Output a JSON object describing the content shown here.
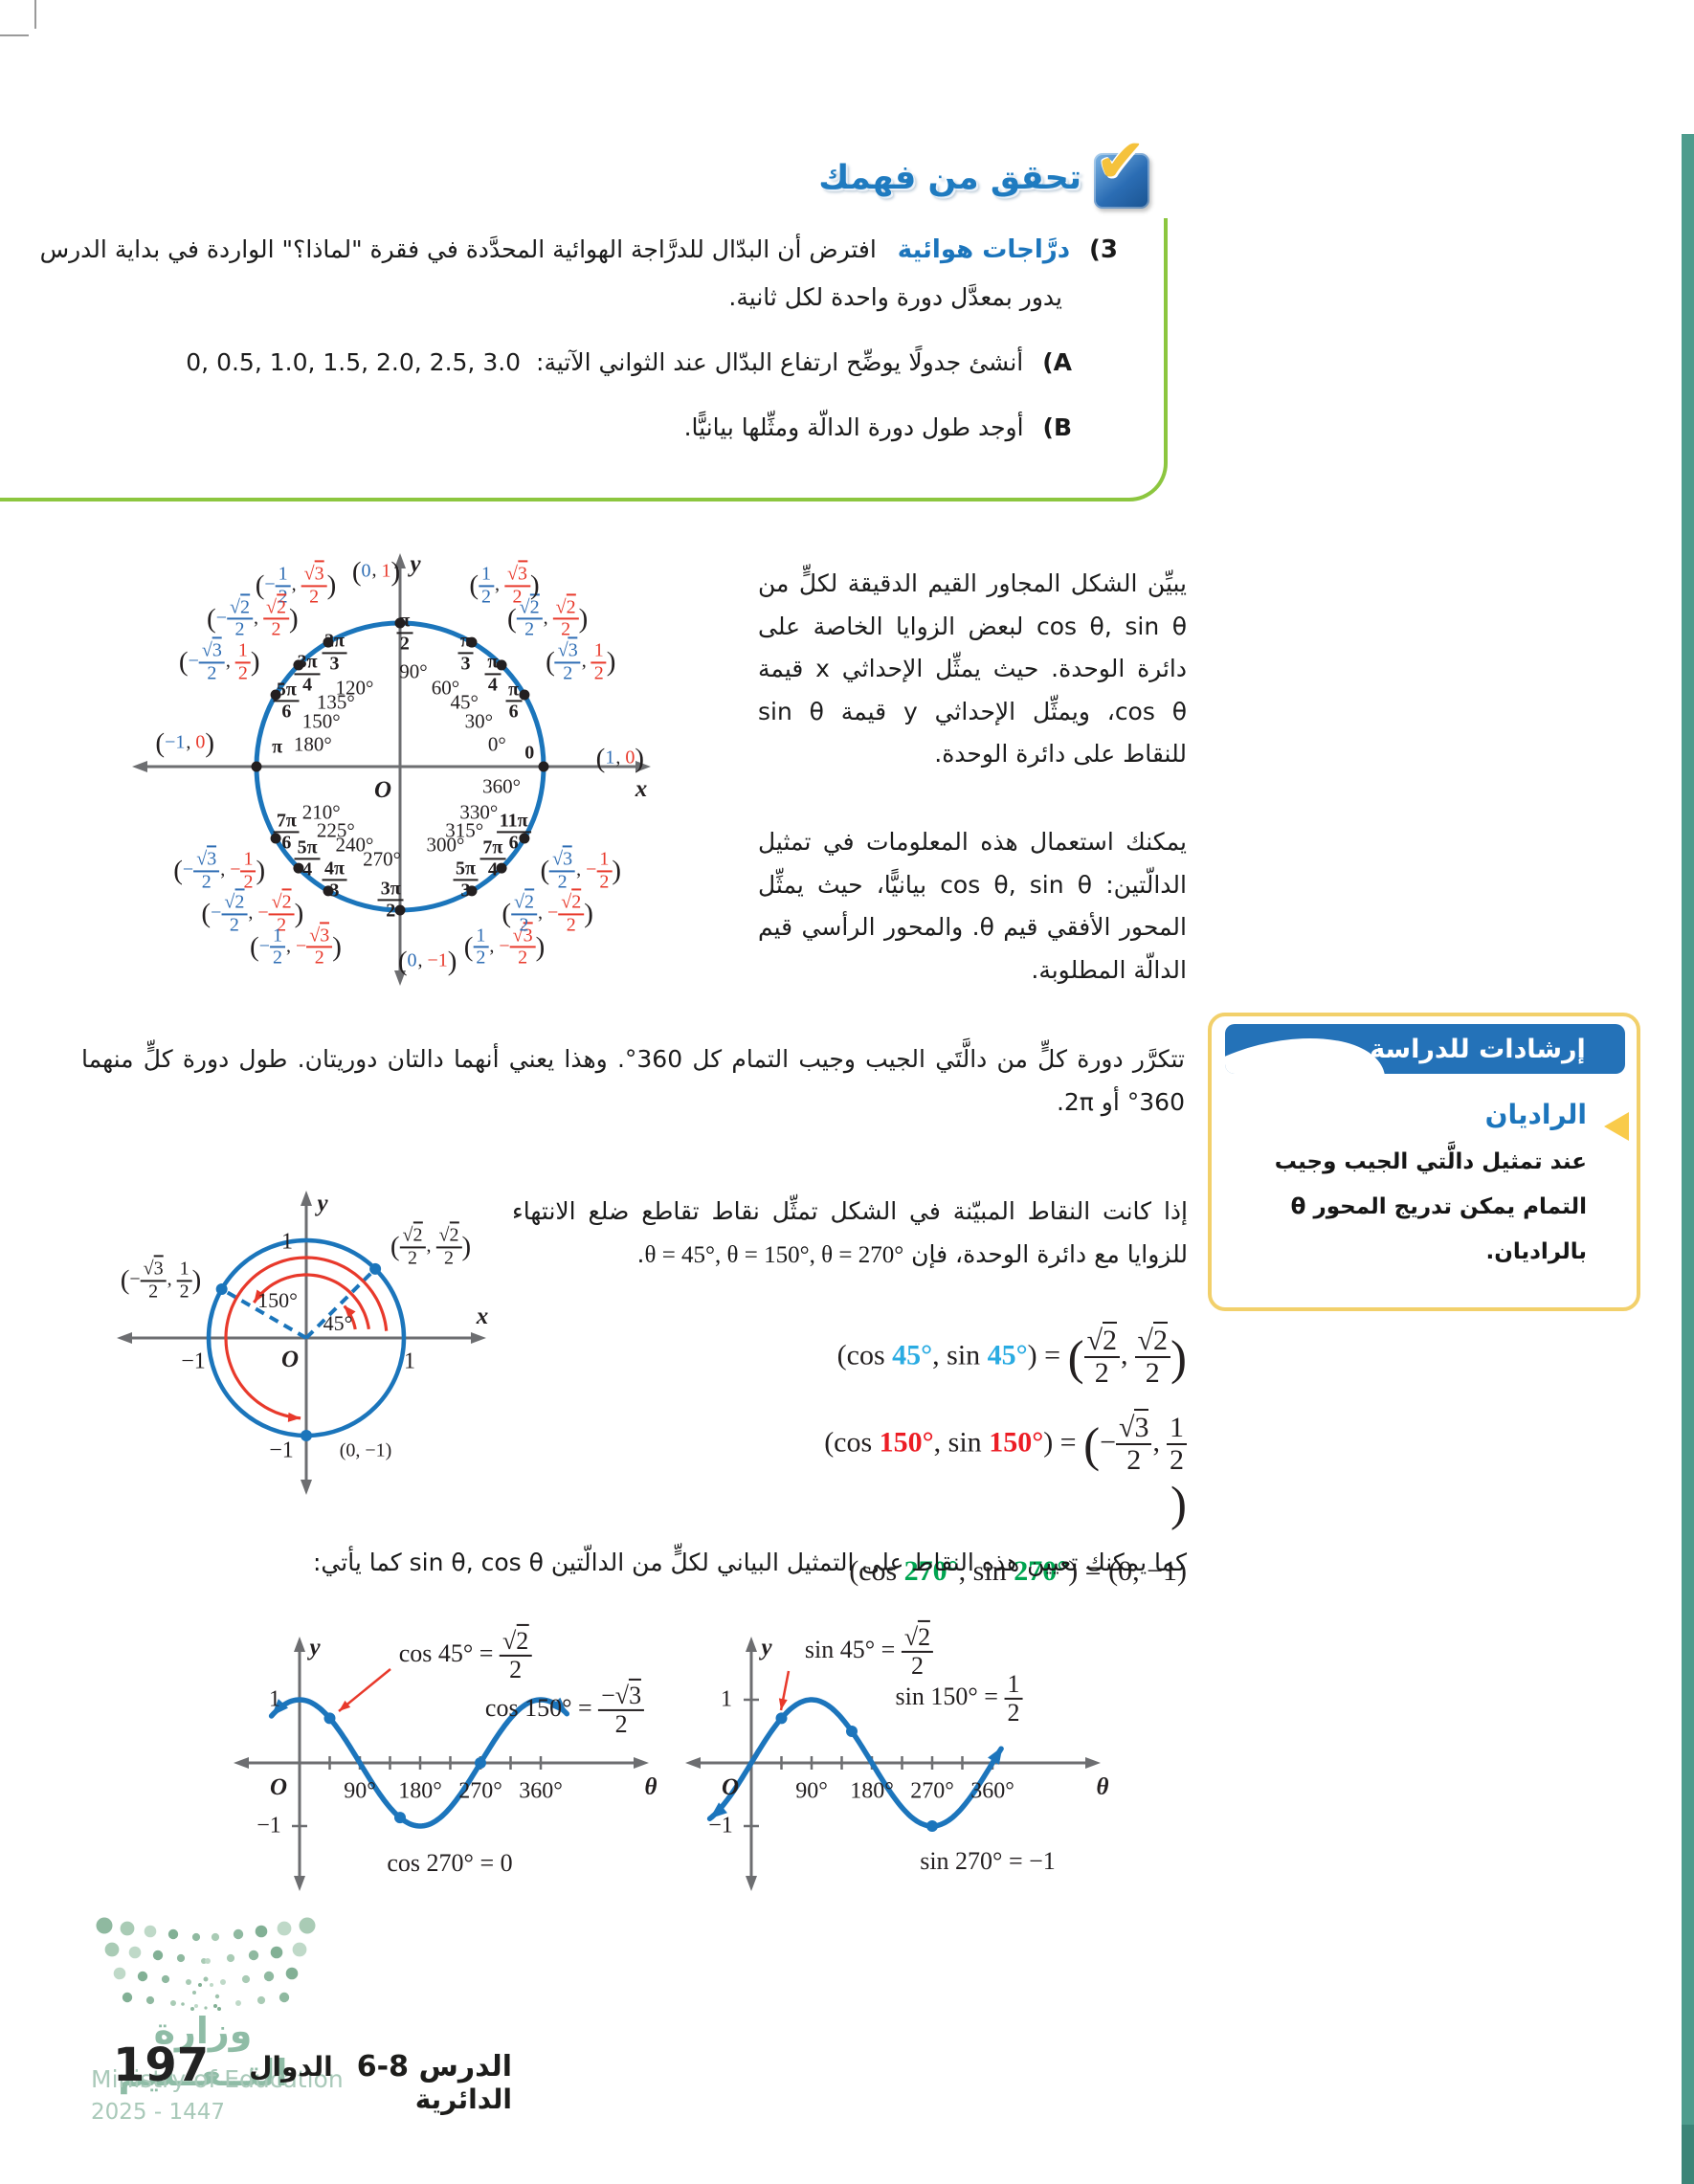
{
  "check_section": {
    "header": "تحقق من فهمك",
    "problem_number": "3)",
    "problem_label": "درَّاجات هوائية",
    "problem_text_1": "افترض أن البدّال للدرَّاجة الهوائية المحدَّدة في فقرة \"لماذا؟\" الواردة في بداية الدرس",
    "problem_text_2": "يدور بمعدَّل دورة واحدة لكل ثانية.",
    "item_a_num": "A)",
    "item_a_text": "أنشئ جدولًا يوضِّح ارتفاع البدّال عند الثواني الآتية:",
    "item_a_values": "0, 0.5, 1.0, 1.5, 2.0, 2.5, 3.0",
    "item_b_num": "B)",
    "item_b_text": "أوجد طول دورة الدالّة ومثِّلها بيانيًّا."
  },
  "intro": {
    "para1": "يبيِّن الشكل المجاور القيم الدقيقة لكلٍّ من cos θ, sin θ لبعض الزوايا الخاصة على دائرة الوحدة. حيث يمثِّل الإحداثي x قيمة cos θ، ويمثِّل الإحداثي y قيمة sin θ للنقاط على دائرة الوحدة.",
    "para2": "يمكنك استعمال هذه المعلومات في تمثيل الدالّتين: cos θ, sin θ بيانيًّا، حيث يمثِّل المحور الأفقي قيم θ. والمحور الرأسي قيم الدالّة المطلوبة."
  },
  "big_unit_circle": {
    "axis_x": "x",
    "axis_y": "y",
    "origin": "O",
    "extra_deg": "360°",
    "points": [
      {
        "angle": 0,
        "deg": "0°",
        "rad": "0",
        "coord": [
          "1",
          "0"
        ]
      },
      {
        "angle": 30,
        "deg": "30°",
        "rad": "π/6",
        "coord": [
          "√3/2",
          "1/2"
        ]
      },
      {
        "angle": 45,
        "deg": "45°",
        "rad": "π/4",
        "coord": [
          "√2/2",
          "√2/2"
        ]
      },
      {
        "angle": 60,
        "deg": "60°",
        "rad": "π/3",
        "coord": [
          "1/2",
          "√3/2"
        ]
      },
      {
        "angle": 90,
        "deg": "90°",
        "rad": "π/2",
        "coord": [
          "0",
          "1"
        ]
      },
      {
        "angle": 120,
        "deg": "120°",
        "rad": "2π/3",
        "coord": [
          "-1/2",
          "√3/2"
        ]
      },
      {
        "angle": 135,
        "deg": "135°",
        "rad": "3π/4",
        "coord": [
          "-√2/2",
          "√2/2"
        ]
      },
      {
        "angle": 150,
        "deg": "150°",
        "rad": "5π/6",
        "coord": [
          "-√3/2",
          "1/2"
        ]
      },
      {
        "angle": 180,
        "deg": "180°",
        "rad": "π",
        "coord": [
          "-1",
          "0"
        ]
      },
      {
        "angle": 210,
        "deg": "210°",
        "rad": "7π/6",
        "coord": [
          "-√3/2",
          "-1/2"
        ]
      },
      {
        "angle": 225,
        "deg": "225°",
        "rad": "5π/4",
        "coord": [
          "-√2/2",
          "-√2/2"
        ]
      },
      {
        "angle": 240,
        "deg": "240°",
        "rad": "4π/3",
        "coord": [
          "-1/2",
          "-√3/2"
        ]
      },
      {
        "angle": 270,
        "deg": "270°",
        "rad": "3π/2",
        "coord": [
          "0",
          "-1"
        ]
      },
      {
        "angle": 300,
        "deg": "300°",
        "rad": "5π/3",
        "coord": [
          "1/2",
          "-√3/2"
        ]
      },
      {
        "angle": 315,
        "deg": "315°",
        "rad": "7π/4",
        "coord": [
          "√2/2",
          "-√2/2"
        ]
      },
      {
        "angle": 330,
        "deg": "330°",
        "rad": "11π/6",
        "coord": [
          "√3/2",
          "-1/2"
        ]
      }
    ]
  },
  "period_para": "تتكرَّر دورة كلٍّ من دالَّتَي الجيب وجيب التمام كل 360°. وهذا يعني أنهما دالتان دوريتان. طول دورة كلٍّ منهما 360° أو 2π.",
  "study_tip": {
    "header": "إرشادات للدراسة",
    "title": "الراديان",
    "body": "عند تمثيل دالَّتي الجيب وجيب التمام يمكن تدريج المحور θ بالراديان."
  },
  "points_para": {
    "text": "إذا كانت النقاط المبيّنة في الشكل تمثِّل نقاط تقاطع ضلع الانتهاء للزوايا مع دائرة الوحدة، فإن",
    "math": "θ = 45°, θ = 150°, θ = 270°",
    "period": "."
  },
  "small_unit_circle": {
    "axis_x": "x",
    "axis_y": "y",
    "origin": "O",
    "ticks": {
      "top": "1",
      "right": "1",
      "left": "−1",
      "bottom": "−1"
    },
    "angle_labels": [
      {
        "deg": 45,
        "label": "45°"
      },
      {
        "deg": 150,
        "label": "150°"
      }
    ],
    "dashed_angles": [
      45,
      150
    ],
    "dot_angles": [
      45,
      150,
      270
    ],
    "arc_angles": [
      45,
      150,
      270
    ],
    "coords": [
      {
        "deg": 45,
        "pair": [
          "√2/2",
          "√2/2"
        ]
      },
      {
        "deg": 150,
        "pair": [
          "-√3/2",
          "1/2"
        ]
      },
      {
        "deg": 270,
        "text": "(0, −1)"
      }
    ]
  },
  "equations": [
    {
      "angle": "45°",
      "color": "#29ABE2",
      "rhs": {
        "pair": [
          "√2/2",
          "√2/2"
        ]
      }
    },
    {
      "angle": "150°",
      "color": "#EC1C24",
      "rhs": {
        "pair": [
          "-√3/2",
          "1/2"
        ]
      }
    },
    {
      "angle": "270°",
      "color": "#00A551",
      "rhs": {
        "text": "(0, −1)"
      }
    }
  ],
  "graph_intro": "كما يمكنك تعيين هذه النقاط على التمثيل البياني لكلٍّ من الدالّتين sin θ, cos θ كما يأتي:",
  "chart_data": [
    {
      "type": "line",
      "function": "cos",
      "x_unit": "degrees",
      "domain": [
        -42,
        400
      ],
      "ylim": [
        -1,
        1
      ],
      "xticks": [
        90,
        180,
        270,
        360
      ],
      "xtick_labels": [
        "90°",
        "180°",
        "270°",
        "360°"
      ],
      "ytick_labels": [
        "1",
        "−1"
      ],
      "xlabel": "θ",
      "ylabel": "y",
      "origin": "O",
      "marked_points": [
        {
          "deg": 45,
          "value": 0.7071,
          "label": {
            "pre": "cos 45° = ",
            "frac": "√2/2"
          }
        },
        {
          "deg": 150,
          "value": -0.866,
          "label": {
            "pre": "cos 150° = ",
            "frac": "-√3/2"
          }
        },
        {
          "deg": 270,
          "value": 0,
          "label": {
            "pre": "cos 270° = 0"
          }
        }
      ]
    },
    {
      "type": "line",
      "function": "sin",
      "x_unit": "degrees",
      "domain": [
        -62,
        375
      ],
      "ylim": [
        -1,
        1
      ],
      "xticks": [
        90,
        180,
        270,
        360
      ],
      "xtick_labels": [
        "90°",
        "180°",
        "270°",
        "360°"
      ],
      "ytick_labels": [
        "1",
        "−1"
      ],
      "xlabel": "θ",
      "ylabel": "y",
      "origin": "O",
      "marked_points": [
        {
          "deg": 45,
          "value": 0.7071,
          "label": {
            "pre": "sin 45° = ",
            "frac": "√2/2"
          }
        },
        {
          "deg": 150,
          "value": 0.5,
          "label": {
            "pre": "sin 150° = ",
            "frac": "1/2"
          }
        },
        {
          "deg": 270,
          "value": -1,
          "label": {
            "pre": "sin 270° = −1"
          }
        }
      ]
    }
  ],
  "footer": {
    "page_number": "197",
    "lesson_number": "الدرس 8-6",
    "lesson_title": "الدوال الدائرية",
    "ministry_ar": "وزارة التــعــليم",
    "ministry_en": "Ministry of Education",
    "hijri_year": "2025 - 1447"
  }
}
